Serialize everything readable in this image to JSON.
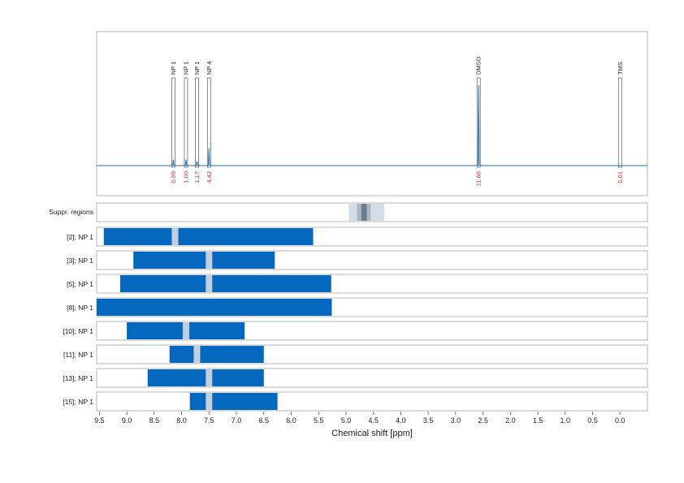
{
  "chart_data": {
    "type": "line",
    "title": "",
    "xlabel": "Chemical shift [ppm]",
    "ylabel": "",
    "xlim": [
      9.55,
      -0.5
    ],
    "x_reversed": true,
    "x_ticks": [
      9.5,
      9.0,
      8.5,
      8.0,
      7.5,
      7.0,
      6.5,
      6.0,
      5.5,
      5.0,
      4.5,
      4.0,
      3.5,
      3.0,
      2.5,
      2.0,
      1.5,
      1.0,
      0.5,
      0.0
    ],
    "x_tick_labels": [
      "9.5",
      "9.0",
      "8.5",
      "8.0",
      "7.5",
      "7.0",
      "6.5",
      "6.0",
      "5.5",
      "5.0",
      "4.5",
      "4.0",
      "3.5",
      "3.0",
      "2.5",
      "2.0",
      "1.5",
      "1.0",
      "0.5",
      "0.0"
    ],
    "grid": true,
    "spectrum": {
      "color": "#1a6fb3",
      "peaks": [
        {
          "label": "NP 1",
          "shift": 8.15,
          "integral": "0.99",
          "height": 0.07
        },
        {
          "label": "NP 1",
          "shift": 7.92,
          "integral": "1.00",
          "height": 0.07
        },
        {
          "label": "NP 1",
          "shift": 7.72,
          "integral": "1.17",
          "height": 0.05
        },
        {
          "label": "NP 4",
          "shift": 7.5,
          "integral": "4.42",
          "height": 0.2
        },
        {
          "label": "DMSO",
          "shift": 2.58,
          "integral": "11.66",
          "height": 0.95
        },
        {
          "label": "TMS",
          "shift": 0.0,
          "integral": "0.01",
          "height": 0.0
        }
      ]
    },
    "suppressed_regions": {
      "label": "Suppr. regions",
      "bands": [
        {
          "from": 4.95,
          "to": 4.3,
          "color": "#d4dde6"
        },
        {
          "from": 4.8,
          "to": 4.55,
          "color": "#aab6c2"
        },
        {
          "from": 4.72,
          "to": 4.62,
          "color": "#6e7d8c"
        }
      ]
    },
    "ranges": [
      {
        "label": "[2]; NP 1",
        "from": 9.42,
        "to": 5.6,
        "gap": 8.12
      },
      {
        "label": "[3]; NP 1",
        "from": 8.88,
        "to": 6.3,
        "gap": 7.5
      },
      {
        "label": "[5]; NP 1",
        "from": 9.12,
        "to": 5.27,
        "gap": 7.5
      },
      {
        "label": "[8]; NP 1",
        "from": 9.55,
        "to": 5.26,
        "gap": null
      },
      {
        "label": "[10]; NP 1",
        "from": 9.0,
        "to": 6.85,
        "gap": 7.92
      },
      {
        "label": "[11]; NP 1",
        "from": 8.22,
        "to": 6.5,
        "gap": 7.72
      },
      {
        "label": "[13]; NP 1",
        "from": 8.62,
        "to": 6.5,
        "gap": 7.5
      },
      {
        "label": "[15]; NP 1",
        "from": 7.85,
        "to": 6.25,
        "gap": 7.5
      }
    ],
    "range_color": "#0468bf"
  }
}
